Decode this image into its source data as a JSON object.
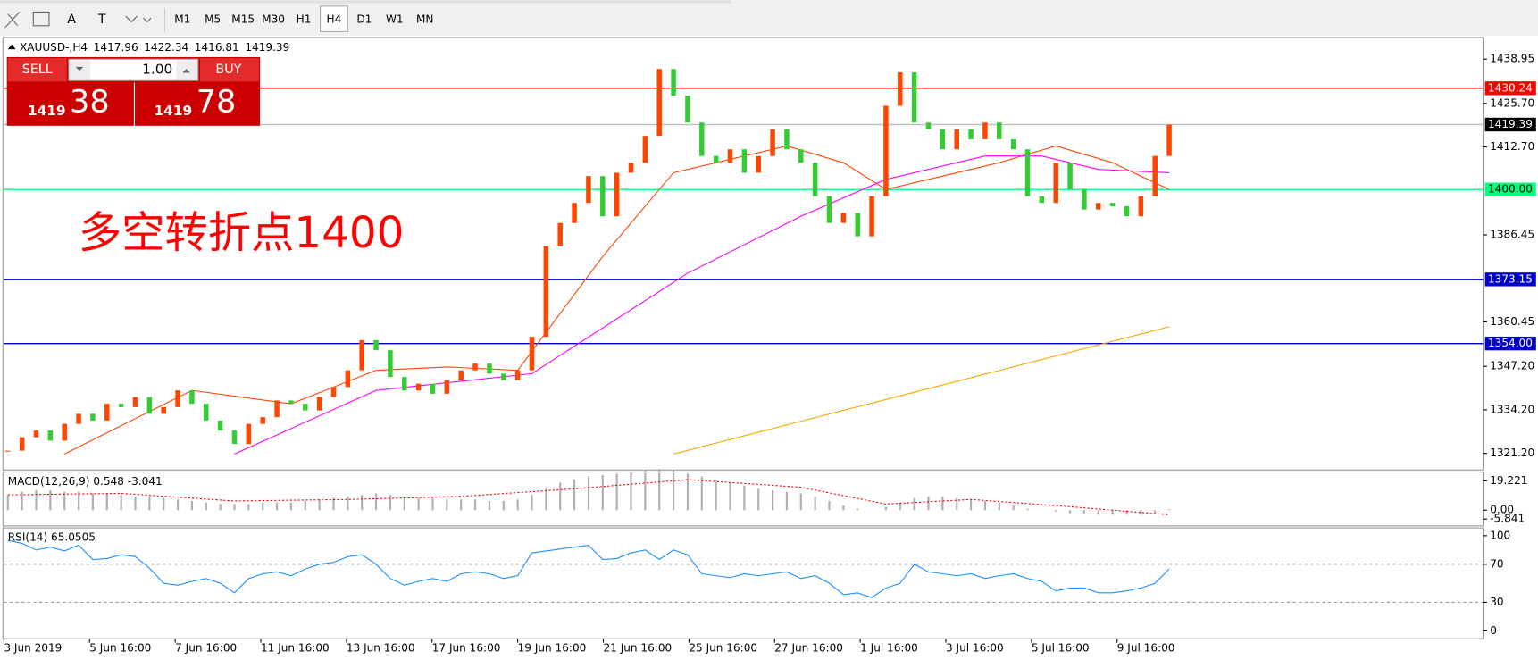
{
  "toolbar": {
    "tools": [
      "A",
      "T"
    ],
    "timeframes": [
      "M1",
      "M5",
      "M15",
      "M30",
      "H1",
      "H4",
      "D1",
      "W1",
      "MN"
    ],
    "active": "H4"
  },
  "header": {
    "symbol": "XAUUSD-,H4",
    "ohlc": [
      1417.96,
      1422.34,
      1416.81,
      1419.39
    ]
  },
  "trade_panel": {
    "sell": "SELL",
    "buy": "BUY",
    "lot": "1.00",
    "bid_big": "1419",
    "bid_small": "38",
    "ask_big": "1419",
    "ask_small": "78"
  },
  "annotation": "多空转折点1400",
  "price_chart": {
    "ylim": [
      1321.2,
      1438.95
    ],
    "yticks": [
      1438.95,
      {
        "value": 1425.7,
        "label": "1425.70"
      },
      {
        "value": 1412.7,
        "label": "1412.70"
      },
      1386.45,
      1360.45,
      {
        "value": 1347.2,
        "label": "1347.20"
      },
      {
        "value": 1334.2,
        "label": "1334.20"
      },
      {
        "value": 1321.2,
        "label": "1321.20"
      }
    ],
    "up_color": "#ff4500",
    "down_color": "#32cd32",
    "closes": [
      1322,
      1326,
      1328,
      1325,
      1330,
      1333,
      1331,
      1336,
      1335,
      1338,
      1333,
      1335,
      1340,
      1336,
      1331,
      1328,
      1324,
      1330,
      1332,
      1337,
      1336,
      1334,
      1338,
      1341,
      1346,
      1355,
      1352,
      1344,
      1340,
      1342,
      1339,
      1343,
      1346,
      1348,
      1345,
      1343,
      1346,
      1356,
      1383,
      1390,
      1396,
      1404,
      1392,
      1405,
      1408,
      1416,
      1436,
      1428,
      1420,
      1410,
      1408,
      1412,
      1405,
      1410,
      1418,
      1412,
      1408,
      1398,
      1390,
      1393,
      1386,
      1398,
      1425,
      1435,
      1420,
      1418,
      1412,
      1418,
      1415,
      1420,
      1415,
      1412,
      1398,
      1396,
      1408,
      1400,
      1394,
      1396,
      1395,
      1392,
      1398,
      1410,
      1419.39
    ],
    "hlines": [
      {
        "value": 1430.24,
        "color": "#ff0000",
        "label_bg": "#ff0000"
      },
      {
        "value": 1419.39,
        "color": "#c0c0c0",
        "label_bg": "#000000"
      },
      {
        "value": 1400,
        "label": "1400.00",
        "color": "#00ff7f",
        "label_bg": "#00ff7f"
      },
      {
        "value": 1373.15,
        "color": "#0000cd",
        "label_bg": "#0000cd"
      },
      {
        "value": 1354,
        "label": "1354.00",
        "color": "#0000cd",
        "label_bg": "#0000cd"
      }
    ],
    "moving_averages": [
      {
        "color": "#ff4500",
        "x": [
          4,
          13,
          20,
          26,
          31,
          36,
          42,
          47,
          55,
          59,
          62,
          66,
          70,
          74,
          78,
          82
        ],
        "values": [
          1321,
          1340,
          1336,
          1346,
          1347,
          1346,
          1380,
          1405,
          1413,
          1408,
          1400,
          1404,
          1408,
          1413,
          1408,
          1400
        ]
      },
      {
        "color": "#ff00ff",
        "x": [
          16,
          26,
          37,
          48,
          56,
          62,
          69,
          73,
          77,
          82
        ],
        "values": [
          1321,
          1340,
          1345,
          1375,
          1392,
          1403,
          1410,
          1410,
          1406,
          1405
        ]
      },
      {
        "color": "#ffa500",
        "x": [
          47,
          82
        ],
        "values": [
          1321,
          1359
        ]
      }
    ]
  },
  "macd": {
    "title": "MACD(12,26,9) 0.548 -3.041",
    "ylim": [
      -5.841,
      19.221
    ],
    "yticks": [
      19.221,
      {
        "value": 0,
        "label": "0.00"
      },
      -5.841
    ],
    "histogram": [
      10,
      12,
      13,
      13,
      12,
      12,
      11,
      11,
      10,
      9,
      9,
      8,
      7,
      6,
      5,
      4,
      4,
      4,
      5,
      5,
      5,
      6,
      7,
      8,
      9,
      10,
      11,
      10,
      9,
      8,
      8,
      7,
      7,
      7,
      6,
      6,
      7,
      10,
      15,
      18,
      20,
      22,
      23,
      24,
      25,
      26,
      27,
      26,
      24,
      22,
      20,
      18,
      16,
      14,
      13,
      12,
      11,
      9,
      6,
      3,
      1,
      0,
      2,
      5,
      8,
      9,
      9,
      8,
      7,
      6,
      5,
      3,
      1,
      0,
      -1,
      -2,
      -2,
      -3,
      -3,
      -3,
      -3,
      -2,
      0.548
    ],
    "signal": {
      "color": "#ff0000",
      "x": [
        0,
        8,
        16,
        24,
        32,
        40,
        48,
        56,
        62,
        68,
        74,
        82
      ],
      "values": [
        10,
        11,
        6,
        7,
        9,
        14,
        20,
        15,
        4,
        7,
        3,
        -3.041
      ]
    }
  },
  "rsi": {
    "title": "RSI(14) 65.0505",
    "ylim": [
      0,
      100
    ],
    "yticks": [
      100,
      70,
      30,
      0
    ],
    "levels": [
      70,
      30
    ],
    "color": "#1e90ff",
    "values": [
      95,
      92,
      85,
      88,
      84,
      90,
      75,
      76,
      80,
      78,
      66,
      50,
      48,
      52,
      55,
      50,
      40,
      55,
      60,
      62,
      58,
      65,
      70,
      72,
      78,
      80,
      70,
      55,
      48,
      52,
      55,
      52,
      60,
      62,
      60,
      55,
      58,
      82,
      84,
      86,
      88,
      90,
      75,
      76,
      82,
      85,
      75,
      85,
      80,
      60,
      58,
      56,
      60,
      58,
      60,
      62,
      55,
      58,
      50,
      38,
      40,
      35,
      45,
      50,
      70,
      62,
      60,
      58,
      60,
      55,
      58,
      60,
      55,
      52,
      42,
      45,
      45,
      40,
      40,
      42,
      45,
      50,
      65.05
    ]
  },
  "dates": [
    "3 Jun 2019",
    "5 Jun 16:00",
    "7 Jun 16:00",
    "11 Jun 16:00",
    "13 Jun 16:00",
    "17 Jun 16:00",
    "19 Jun 16:00",
    "21 Jun 16:00",
    "25 Jun 16:00",
    "27 Jun 16:00",
    "1 Jul 16:00",
    "3 Jul 16:00",
    "5 Jul 16:00",
    "9 Jul 16:00"
  ]
}
